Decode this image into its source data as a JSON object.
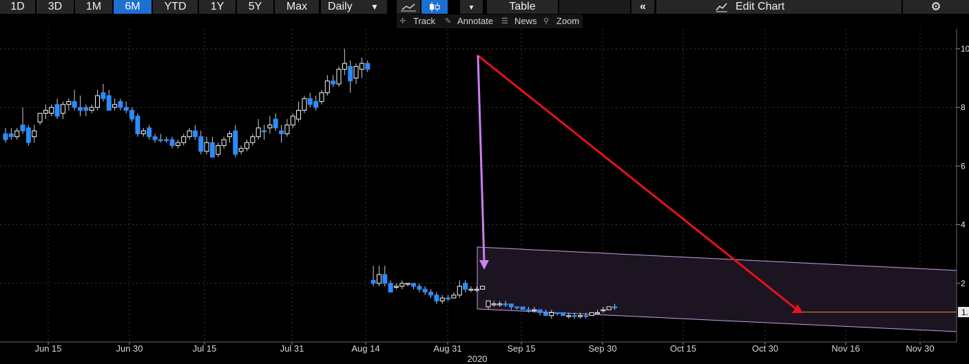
{
  "toolbar": {
    "ranges": [
      "1D",
      "3D",
      "1M",
      "6M",
      "YTD",
      "1Y",
      "5Y",
      "Max"
    ],
    "active_range": "6M",
    "frequency": "Daily",
    "chart_style_active": "candlestick-icon",
    "table_label": "Table",
    "edit_chart_label": "Edit Chart"
  },
  "subtoolbar": {
    "track": "Track",
    "annotate": "Annotate",
    "news": "News",
    "zoom": "Zoom"
  },
  "chart_data": {
    "type": "candlestick",
    "x_ticks": [
      "Jun 15",
      "Jun 30",
      "Jul 15",
      "Jul 31",
      "Aug 14",
      "Aug 31",
      "Sep 15",
      "Sep 30",
      "Oct 15",
      "Oct 30",
      "Nov 16",
      "Nov 30"
    ],
    "year_label": "2020",
    "y_ticks": [
      "10",
      "8",
      "6",
      "4",
      "2"
    ],
    "last_price_label": "1.",
    "ylim": [
      0,
      10.7
    ],
    "colors": {
      "up": "#ffffff",
      "down": "#2a8cff",
      "grid": "#3a3a3a",
      "channel_fill": "#1c1521",
      "channel_line": "#c8a0e8",
      "red_arrow": "#e8121b",
      "purple_arrow": "#cc7ff0",
      "last_price_line": "#e88a2a"
    },
    "candles": [
      [
        7.1,
        7.3,
        6.9,
        6.8,
        "down"
      ],
      [
        7.1,
        7.3,
        7.0,
        6.9,
        "down"
      ],
      [
        7.0,
        7.3,
        7.2,
        6.9,
        "up"
      ],
      [
        7.4,
        8.0,
        7.2,
        7.1,
        "down"
      ],
      [
        7.3,
        7.4,
        6.8,
        6.7,
        "down"
      ],
      [
        7.0,
        7.4,
        7.2,
        6.8,
        "up"
      ],
      [
        7.5,
        7.8,
        7.8,
        7.4,
        "up"
      ],
      [
        7.8,
        8.1,
        7.9,
        7.6,
        "up"
      ],
      [
        7.8,
        8.1,
        8.0,
        7.7,
        "up"
      ],
      [
        8.1,
        8.3,
        7.7,
        7.6,
        "down"
      ],
      [
        7.8,
        8.2,
        8.1,
        7.6,
        "up"
      ],
      [
        8.1,
        8.3,
        8.2,
        7.9,
        "up"
      ],
      [
        8.2,
        8.6,
        8.0,
        7.9,
        "down"
      ],
      [
        8.0,
        8.4,
        7.9,
        7.7,
        "down"
      ],
      [
        8.0,
        8.1,
        7.9,
        7.7,
        "down"
      ],
      [
        7.9,
        8.1,
        8.0,
        7.8,
        "up"
      ],
      [
        8.0,
        8.6,
        8.4,
        7.9,
        "up"
      ],
      [
        8.5,
        8.8,
        8.3,
        8.2,
        "down"
      ],
      [
        8.4,
        8.6,
        7.9,
        7.9,
        "down"
      ],
      [
        8.0,
        8.3,
        8.1,
        7.9,
        "up"
      ],
      [
        8.2,
        8.3,
        8.0,
        7.9,
        "down"
      ],
      [
        8.0,
        8.2,
        7.9,
        7.8,
        "down"
      ],
      [
        7.9,
        8.0,
        7.6,
        7.5,
        "down"
      ],
      [
        7.7,
        7.8,
        7.1,
        7.0,
        "down"
      ],
      [
        7.1,
        7.3,
        7.2,
        7.0,
        "up"
      ],
      [
        7.3,
        7.4,
        7.0,
        6.9,
        "down"
      ],
      [
        7.0,
        7.1,
        6.9,
        6.8,
        "down"
      ],
      [
        6.9,
        7.1,
        6.9,
        6.8,
        "down"
      ],
      [
        6.9,
        7.0,
        6.9,
        6.8,
        "down"
      ],
      [
        6.9,
        7.0,
        6.7,
        6.6,
        "down"
      ],
      [
        6.7,
        6.9,
        6.8,
        6.6,
        "up"
      ],
      [
        6.8,
        7.1,
        7.0,
        6.7,
        "up"
      ],
      [
        7.0,
        7.3,
        7.2,
        6.9,
        "up"
      ],
      [
        7.2,
        7.4,
        7.0,
        6.9,
        "down"
      ],
      [
        7.0,
        7.2,
        6.5,
        6.4,
        "down"
      ],
      [
        6.5,
        7.0,
        6.8,
        6.4,
        "up"
      ],
      [
        6.8,
        7.0,
        6.3,
        6.3,
        "down"
      ],
      [
        6.4,
        6.8,
        6.7,
        6.3,
        "up"
      ],
      [
        6.7,
        7.0,
        6.9,
        6.6,
        "up"
      ],
      [
        7.0,
        7.2,
        7.1,
        6.8,
        "up"
      ],
      [
        7.2,
        7.4,
        6.4,
        6.3,
        "down"
      ],
      [
        6.5,
        6.7,
        6.6,
        6.4,
        "up"
      ],
      [
        6.6,
        6.9,
        6.8,
        6.5,
        "up"
      ],
      [
        6.8,
        7.1,
        7.0,
        6.7,
        "up"
      ],
      [
        7.0,
        7.6,
        7.3,
        6.9,
        "up"
      ],
      [
        7.2,
        7.4,
        7.2,
        6.9,
        "down"
      ],
      [
        7.3,
        7.7,
        7.4,
        7.1,
        "up"
      ],
      [
        7.6,
        7.8,
        7.3,
        7.2,
        "down"
      ],
      [
        7.2,
        7.4,
        7.1,
        6.8,
        "down"
      ],
      [
        7.1,
        7.6,
        7.4,
        7.0,
        "up"
      ],
      [
        7.4,
        7.8,
        7.7,
        7.3,
        "up"
      ],
      [
        7.6,
        8.2,
        7.9,
        7.5,
        "up"
      ],
      [
        7.9,
        8.4,
        8.3,
        7.8,
        "up"
      ],
      [
        8.3,
        8.5,
        8.1,
        8.0,
        "down"
      ],
      [
        8.0,
        8.4,
        8.2,
        7.9,
        "down"
      ],
      [
        8.2,
        8.6,
        8.5,
        8.1,
        "up"
      ],
      [
        8.5,
        9.1,
        8.9,
        8.4,
        "up"
      ],
      [
        8.9,
        9.1,
        8.8,
        8.7,
        "down"
      ],
      [
        8.8,
        9.4,
        9.3,
        8.7,
        "up"
      ],
      [
        9.3,
        10.0,
        9.5,
        9.1,
        "up"
      ],
      [
        9.4,
        9.6,
        8.9,
        8.5,
        "down"
      ],
      [
        9.0,
        9.5,
        9.4,
        8.8,
        "up"
      ],
      [
        9.3,
        9.7,
        9.5,
        9.0,
        "up"
      ],
      [
        9.5,
        9.6,
        9.3,
        9.2,
        "down"
      ],
      [
        2.1,
        2.6,
        2.0,
        1.9,
        "down"
      ],
      [
        2.0,
        2.6,
        2.3,
        1.9,
        "up"
      ],
      [
        2.3,
        2.6,
        2.0,
        1.9,
        "down"
      ],
      [
        2.0,
        2.1,
        1.7,
        1.7,
        "down"
      ],
      [
        1.9,
        2.0,
        1.9,
        1.8,
        "up"
      ],
      [
        1.9,
        2.1,
        2.0,
        1.8,
        "up"
      ],
      [
        2.0,
        2.0,
        2.0,
        1.9,
        "up"
      ],
      [
        2.0,
        2.0,
        1.9,
        1.8,
        "down"
      ],
      [
        1.9,
        2.0,
        1.8,
        1.7,
        "down"
      ],
      [
        1.8,
        1.9,
        1.7,
        1.6,
        "down"
      ],
      [
        1.7,
        1.8,
        1.6,
        1.5,
        "down"
      ],
      [
        1.6,
        1.7,
        1.4,
        1.3,
        "down"
      ],
      [
        1.4,
        1.6,
        1.5,
        1.3,
        "up"
      ],
      [
        1.5,
        1.6,
        1.5,
        1.4,
        "down"
      ],
      [
        1.5,
        1.7,
        1.6,
        1.5,
        "up"
      ],
      [
        1.6,
        2.1,
        1.9,
        1.5,
        "up"
      ],
      [
        2.0,
        2.1,
        1.8,
        1.7,
        "down"
      ],
      [
        1.8,
        1.9,
        1.8,
        1.7,
        "up"
      ],
      [
        1.8,
        1.9,
        1.8,
        1.7,
        "up"
      ],
      [
        1.8,
        1.9,
        1.9,
        1.8,
        "up"
      ],
      [
        1.2,
        1.4,
        1.4,
        1.1,
        "up"
      ],
      [
        1.3,
        1.4,
        1.3,
        1.2,
        "up"
      ],
      [
        1.3,
        1.4,
        1.3,
        1.2,
        "up"
      ],
      [
        1.3,
        1.4,
        1.3,
        1.2,
        "down"
      ],
      [
        1.3,
        1.3,
        1.2,
        1.1,
        "down"
      ],
      [
        1.2,
        1.2,
        1.2,
        1.1,
        "down"
      ],
      [
        1.2,
        1.2,
        1.1,
        1.1,
        "down"
      ],
      [
        1.1,
        1.2,
        1.1,
        1.0,
        "down"
      ],
      [
        1.1,
        1.2,
        1.1,
        1.0,
        "up"
      ],
      [
        1.1,
        1.1,
        1.0,
        0.9,
        "down"
      ],
      [
        1.0,
        1.1,
        0.9,
        0.9,
        "down"
      ],
      [
        0.9,
        1.1,
        1.0,
        0.8,
        "up"
      ],
      [
        1.0,
        1.0,
        1.0,
        0.9,
        "down"
      ],
      [
        1.0,
        1.0,
        0.9,
        0.9,
        "down"
      ],
      [
        0.9,
        1.0,
        0.9,
        0.8,
        "up"
      ],
      [
        0.9,
        1.0,
        0.9,
        0.8,
        "down"
      ],
      [
        0.9,
        1.0,
        0.9,
        0.8,
        "up"
      ],
      [
        0.9,
        1.0,
        0.9,
        0.8,
        "down"
      ],
      [
        0.9,
        1.0,
        1.0,
        0.9,
        "up"
      ],
      [
        1.0,
        1.1,
        1.0,
        1.0,
        "up"
      ],
      [
        1.1,
        1.2,
        1.1,
        1.0,
        "up"
      ],
      [
        1.1,
        1.2,
        1.2,
        1.1,
        "up"
      ],
      [
        1.2,
        1.3,
        1.2,
        1.1,
        "down"
      ]
    ]
  }
}
